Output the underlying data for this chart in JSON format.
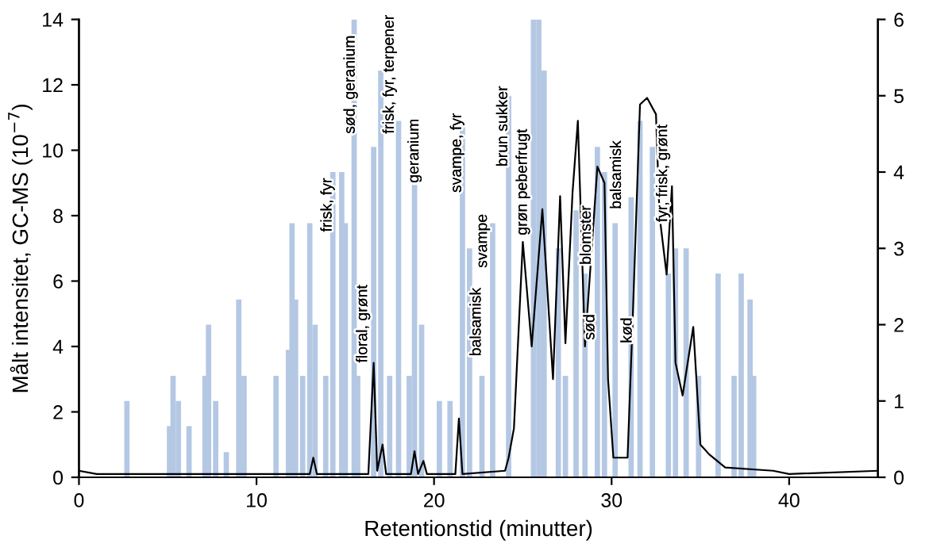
{
  "chart_data": {
    "type": "line",
    "xlabel": "Retentionstid (minutter)",
    "ylabel": "Målt intensitet, GC-MS (10$^{−7}$)",
    "xlim": [
      0,
      45
    ],
    "xticks": [
      0,
      10,
      20,
      30,
      40
    ],
    "ylim": [
      0,
      14
    ],
    "yticks": [
      0,
      2,
      4,
      6,
      8,
      10,
      12,
      14
    ],
    "y2lim": [
      0,
      6
    ],
    "y2ticks": [
      0,
      1,
      2,
      3,
      4,
      5,
      6
    ],
    "grid": false,
    "legend": false,
    "series": [
      {
        "type": "bar",
        "axis": "y2",
        "color": "#b4c8e4",
        "x": [
          2.7,
          5.1,
          5.3,
          5.6,
          6.2,
          7.1,
          7.3,
          7.7,
          8.3,
          9.0,
          9.3,
          11.1,
          11.8,
          12.0,
          12.2,
          12.6,
          13.0,
          13.3,
          13.9,
          14.3,
          14.8,
          15.0,
          15.5,
          15.7,
          16.6,
          17.0,
          17.5,
          18.0,
          18.6,
          18.9,
          19.3,
          20.3,
          20.9,
          21.6,
          22.0,
          22.7,
          23.3,
          24.2,
          25.6,
          25.9,
          26.2,
          27.0,
          27.4,
          28.0,
          28.5,
          29.2,
          29.6,
          30.2,
          31.1,
          31.6,
          32.3,
          33.2,
          33.6,
          34.2,
          34.9,
          36.0,
          36.9,
          37.3,
          37.8,
          38.0
        ],
        "values": [
          1.0,
          0.67,
          1.33,
          1.0,
          0.67,
          1.33,
          2.0,
          1.0,
          0.33,
          2.33,
          1.33,
          1.33,
          1.67,
          3.33,
          2.33,
          1.33,
          3.33,
          2.0,
          1.33,
          4.0,
          4.0,
          3.33,
          6.0,
          1.33,
          4.33,
          5.33,
          1.33,
          4.67,
          1.33,
          3.83,
          2.0,
          1.0,
          1.0,
          4.67,
          3.0,
          1.33,
          3.33,
          5.0,
          6.0,
          6.0,
          5.33,
          3.0,
          1.33,
          3.5,
          2.67,
          4.33,
          4.0,
          3.33,
          3.67,
          4.67,
          4.33,
          2.67,
          3.0,
          3.0,
          1.33,
          2.67,
          1.33,
          2.67,
          2.33,
          1.33
        ]
      },
      {
        "axis": "y",
        "color": "#000000",
        "x": [
          0,
          1,
          5,
          10,
          13.0,
          13.2,
          13.4,
          16.3,
          16.6,
          16.8,
          17.1,
          17.3,
          18.7,
          18.9,
          19.1,
          19.4,
          19.6,
          21.2,
          21.4,
          21.6,
          24.0,
          24.2,
          24.5,
          25.0,
          25.5,
          26.1,
          26.7,
          27.1,
          27.4,
          27.8,
          28.1,
          28.5,
          29.2,
          29.6,
          29.8,
          30.1,
          30.9,
          31.2,
          31.6,
          32.0,
          32.5,
          32.7,
          33.1,
          33.4,
          33.6,
          34.0,
          34.6,
          35.0,
          35.5,
          36.4,
          39.1,
          40,
          45
        ],
        "values": [
          0.2,
          0.1,
          0.1,
          0.1,
          0.1,
          0.6,
          0.1,
          0.1,
          3.5,
          0.2,
          1.0,
          0.1,
          0.1,
          0.8,
          0.1,
          0.5,
          0.1,
          0.1,
          1.8,
          0.1,
          0.2,
          0.6,
          1.5,
          7.2,
          4.0,
          8.2,
          3.0,
          8.6,
          4.1,
          8.7,
          10.9,
          4.0,
          9.5,
          9.0,
          3.0,
          0.6,
          0.6,
          5.0,
          11.4,
          11.6,
          11.1,
          8.0,
          6.2,
          8.9,
          3.5,
          2.5,
          4.6,
          1.0,
          0.7,
          0.3,
          0.2,
          0.1,
          0.2
        ]
      }
    ],
    "annotations": [
      {
        "text": "frisk, fyr",
        "x": 14.0,
        "y": 7.3
      },
      {
        "text": "sød, geranium",
        "x": 15.3,
        "y": 10.3
      },
      {
        "text": "floral, grønt",
        "x": 16.0,
        "y": 3.3
      },
      {
        "text": "frisk, fyr, terpener",
        "x": 17.5,
        "y": 10.3
      },
      {
        "text": "geranium",
        "x": 18.9,
        "y": 8.8
      },
      {
        "text": "svampe, fyr",
        "x": 21.3,
        "y": 8.5
      },
      {
        "text": "balsamisk",
        "x": 22.4,
        "y": 3.5
      },
      {
        "text": "svampe",
        "x": 22.75,
        "y": 6.2
      },
      {
        "text": "brun sukker",
        "x": 23.9,
        "y": 9.3
      },
      {
        "text": "grøn peberfrugt",
        "x": 25.0,
        "y": 7.2
      },
      {
        "text": "blomster",
        "x": 28.6,
        "y": 6.3
      },
      {
        "text": "sød",
        "x": 28.8,
        "y": 4.0
      },
      {
        "text": "balsamisk",
        "x": 30.3,
        "y": 8.0
      },
      {
        "text": "kød",
        "x": 30.9,
        "y": 3.9
      },
      {
        "text": "fyr, frisk, grønt",
        "x": 32.9,
        "y": 7.6
      }
    ]
  }
}
